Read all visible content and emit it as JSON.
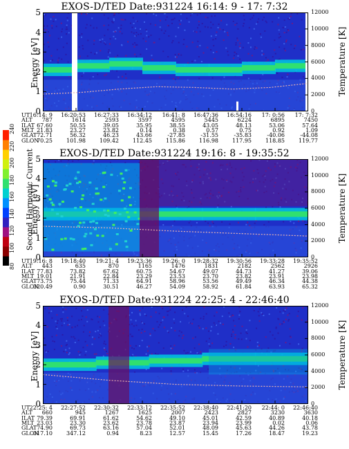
{
  "panels": [
    {
      "title": "EXOS-D/TED   Date:931224  16:14: 9 - 17: 7:32",
      "ylabel": "Energy [eV]",
      "y2label": "Temperature [K]",
      "orbit_rows": [
        "UT",
        "ALT",
        "ILAT",
        "MLT",
        "GLAT",
        "GLON"
      ],
      "orbit_cols": [
        [
          "16:14: 9",
          "787",
          "67.60",
          "21.83",
          "72.71",
          "70.25"
        ],
        [
          "16:20:53",
          "1614",
          "50.55",
          "23.27",
          "56.32",
          "101.98"
        ],
        [
          "16:27:33",
          "2593",
          "39.05",
          "23.82",
          "46.23",
          "109.42"
        ],
        [
          "16:34:12",
          "3597",
          "35.95",
          "0.14",
          "43.66",
          "112.45"
        ],
        [
          "16:41: 8",
          "4595",
          "38.55",
          "0.38",
          "-27.85",
          "115.86"
        ],
        [
          "16:47:36",
          "5445",
          "43.05",
          "0.57",
          "-31.55",
          "116.98"
        ],
        [
          "16:54:16",
          "6224",
          "48.13",
          "0.75",
          "-35.83",
          "117.95"
        ],
        [
          "17: 0:56",
          "6895",
          "53.06",
          "0.92",
          "-40.06",
          "118.85"
        ],
        [
          "17: 7:32",
          "7450",
          "57.64",
          "1.09",
          "-44.08",
          "119.77"
        ]
      ]
    },
    {
      "title": "EXOS-D/TED   Date:931224  19:16: 8 - 19:35:52",
      "ylabel": "Energy [eV]",
      "y2label": "Temperature [K]",
      "colorbar_label": "Second Harmonic Current",
      "orbit_rows": [
        "UT",
        "ALT",
        "ILAT",
        "MLT",
        "GLAT",
        "GLON"
      ],
      "orbit_cols": [
        [
          "19:16: 8",
          "443",
          "77.83",
          "19.01",
          "73.75",
          "320.49"
        ],
        [
          "19:18:40",
          "635",
          "73.82",
          "21.91",
          "75.44",
          "0.90"
        ],
        [
          "19:21: 4",
          "870",
          "67.62",
          "22.84",
          "71.33",
          "30.51"
        ],
        [
          "19:23:36",
          "1165",
          "60.75",
          "23.29",
          "64.91",
          "46.27"
        ],
        [
          "19:26: 0",
          "1476",
          "54.67",
          "23.53",
          "58.96",
          "54.09"
        ],
        [
          "19:28:32",
          "1831",
          "49.07",
          "23.70",
          "53.56",
          "58.92"
        ],
        [
          "19:30:56",
          "2182",
          "44.73",
          "23.82",
          "49.49",
          "61.84"
        ],
        [
          "19:33:28",
          "2562",
          "41.27",
          "23.91",
          "46.34",
          "63.93"
        ],
        [
          "19:35:52",
          "2926",
          "39.06",
          "23.98",
          "44.38",
          "65.32"
        ]
      ]
    },
    {
      "title": "EXOS-D/TED   Date:931224  22:25: 4 - 22:46:40",
      "ylabel": "Energy [eV]",
      "y2label": "Temperature [K]",
      "orbit_rows": [
        "UT",
        "ALT",
        "ILAT",
        "MLT",
        "GLAT",
        "GLON"
      ],
      "orbit_cols": [
        [
          "22:25: 4",
          "660",
          "79.39",
          "23.03",
          "74.90",
          "317.10"
        ],
        [
          "22:27:52",
          "945",
          "69.91",
          "23.30",
          "69.73",
          "347.12"
        ],
        [
          "22:30:32",
          "1267",
          "61.62",
          "23.62",
          "63.16",
          "0.94"
        ],
        [
          "22:33:12",
          "1625",
          "54.62",
          "23.78",
          "57.04",
          "8.23"
        ],
        [
          "22:35:52",
          "2007",
          "49.10",
          "23.87",
          "52.01",
          "12.57"
        ],
        [
          "22:38:40",
          "2423",
          "45.01",
          "23.94",
          "48.09",
          "15.45"
        ],
        [
          "22:41:20",
          "2827",
          "42.59",
          "23.99",
          "45.63",
          "17.26"
        ],
        [
          "22:44: 0",
          "3230",
          "40.89",
          "0.02",
          "44.26",
          "18.47"
        ],
        [
          "22:46:40",
          "3630",
          "40.18",
          "0.06",
          "43.78",
          "19.23"
        ]
      ]
    }
  ],
  "colorbar": {
    "ticks": [
      "80",
      "100",
      "120",
      "140",
      "160",
      "180",
      "200",
      "220",
      "240"
    ],
    "colors": [
      "#000000",
      "#8b0000",
      "#c00010",
      "#a01080",
      "#3020c0",
      "#0040ff",
      "#0090ff",
      "#00d0d0",
      "#30e070",
      "#80f030",
      "#d0f010",
      "#ffd000",
      "#ff8000",
      "#ff2000"
    ]
  },
  "chart_data": [
    {
      "type": "heatmap",
      "title": "EXOS-D/TED   Date:931224  16:14: 9 - 17: 7:32",
      "ylabel": "Energy [eV]",
      "y2label": "Temperature [K]",
      "ylim": [
        0,
        5
      ],
      "y2lim": [
        0,
        12000
      ],
      "yticks": [
        0,
        1,
        2,
        3,
        4,
        5
      ],
      "y2ticks": [
        0,
        2000,
        4000,
        6000,
        8000,
        10000,
        12000
      ],
      "band_energy_eV": [
        2.1,
        2.3,
        2.4,
        2.2,
        2.1,
        2.1,
        2.2,
        2.3
      ],
      "temperature_K": [
        2100,
        2300,
        2700,
        3000,
        2900,
        2700,
        2900,
        3400
      ]
    },
    {
      "type": "heatmap",
      "title": "EXOS-D/TED   Date:931224  19:16: 8 - 19:35:52",
      "ylabel": "Energy [eV]",
      "y2label": "Temperature [K]",
      "ylim": [
        0,
        5
      ],
      "y2lim": [
        0,
        12000
      ],
      "yticks": [
        0,
        1,
        2,
        3,
        4,
        5
      ],
      "y2ticks": [
        0,
        2000,
        4000,
        6000,
        8000,
        10000,
        12000
      ],
      "colorbar_label": "Second Harmonic Current",
      "colorbar_range": [
        80,
        240
      ],
      "band_energy_eV": [
        2.2,
        2.2,
        2.2,
        2.2,
        2.2
      ],
      "temperature_K": [
        3800,
        3600,
        3200,
        2900,
        2600
      ]
    },
    {
      "type": "heatmap",
      "title": "EXOS-D/TED   Date:931224  22:25: 4 - 22:46:40",
      "ylabel": "Energy [eV]",
      "y2label": "Temperature [K]",
      "ylim": [
        0,
        5
      ],
      "y2lim": [
        0,
        12000
      ],
      "yticks": [
        0,
        1,
        2,
        3,
        4,
        5
      ],
      "y2ticks": [
        0,
        2000,
        4000,
        6000,
        8000,
        10000,
        12000
      ],
      "band_energy_eV": [
        2.0,
        2.1,
        2.2,
        2.3,
        2.3
      ],
      "temperature_K": [
        3600,
        2900,
        2400,
        2200,
        2100
      ]
    }
  ]
}
